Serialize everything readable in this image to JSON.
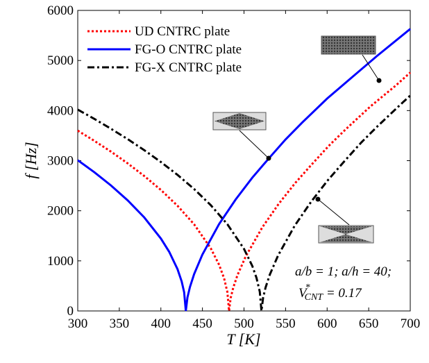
{
  "chart_data": {
    "type": "line",
    "xlabel": "T [K]",
    "ylabel": "f [Hz]",
    "xlim": [
      300,
      700
    ],
    "ylim": [
      0,
      6000
    ],
    "xticks": [
      300,
      350,
      400,
      450,
      500,
      550,
      600,
      650,
      700
    ],
    "yticks": [
      0,
      1000,
      2000,
      3000,
      4000,
      5000,
      6000
    ],
    "grid": false,
    "legend": "upper left",
    "annotations": [
      "a/b = 1; a/h = 40;",
      {
        "base": "V",
        "sup": "*",
        "sub": "CNT",
        "rest": " = 0.17"
      }
    ],
    "series": [
      {
        "name": "UD CNTRC plate",
        "color": "#ff0000",
        "dash": "dotted",
        "x": [
          300,
          320,
          340,
          360,
          380,
          400,
          420,
          440,
          460,
          470,
          476,
          480,
          482,
          484,
          487,
          492,
          502,
          522,
          542,
          562,
          582,
          602,
          622,
          652,
          682,
          700
        ],
        "values": [
          3600,
          3396,
          3180,
          2947,
          2694,
          2416,
          2100,
          1729,
          1251,
          924,
          654,
          377,
          0,
          262,
          461,
          709,
          1086,
          1669,
          2144,
          2562,
          2934,
          3296,
          3621,
          4082,
          4492,
          4760
        ]
      },
      {
        "name": "FG-O CNTRC plate",
        "color": "#0000ff",
        "dash": "solid",
        "x": [
          300,
          320,
          340,
          360,
          380,
          400,
          410,
          420,
          425,
          428,
          430,
          432,
          435,
          440,
          450,
          470,
          490,
          510,
          530,
          550,
          570,
          600,
          630,
          660,
          700
        ],
        "values": [
          3010,
          2769,
          2505,
          2209,
          1867,
          1446,
          1181,
          835,
          590,
          373,
          0,
          272,
          479,
          736,
          1128,
          1733,
          2226,
          2661,
          3048,
          3424,
          3761,
          4240,
          4666,
          5091,
          5630
        ]
      },
      {
        "name": "FG-X CNTRC plate",
        "color": "#000000",
        "dash": "dashdot",
        "x": [
          300,
          320,
          340,
          360,
          380,
          400,
          420,
          440,
          460,
          480,
          500,
          510,
          515,
          519,
          521,
          523,
          526,
          531,
          541,
          561,
          581,
          601,
          621,
          641,
          661,
          691,
          700
        ],
        "values": [
          4020,
          3834,
          3637,
          3431,
          3210,
          2974,
          2717,
          2434,
          2112,
          1731,
          1239,
          897,
          662,
          382,
          0,
          267,
          470,
          723,
          1108,
          1702,
          2186,
          2613,
          2993,
          3362,
          3693,
          4163,
          4300
        ]
      }
    ]
  }
}
